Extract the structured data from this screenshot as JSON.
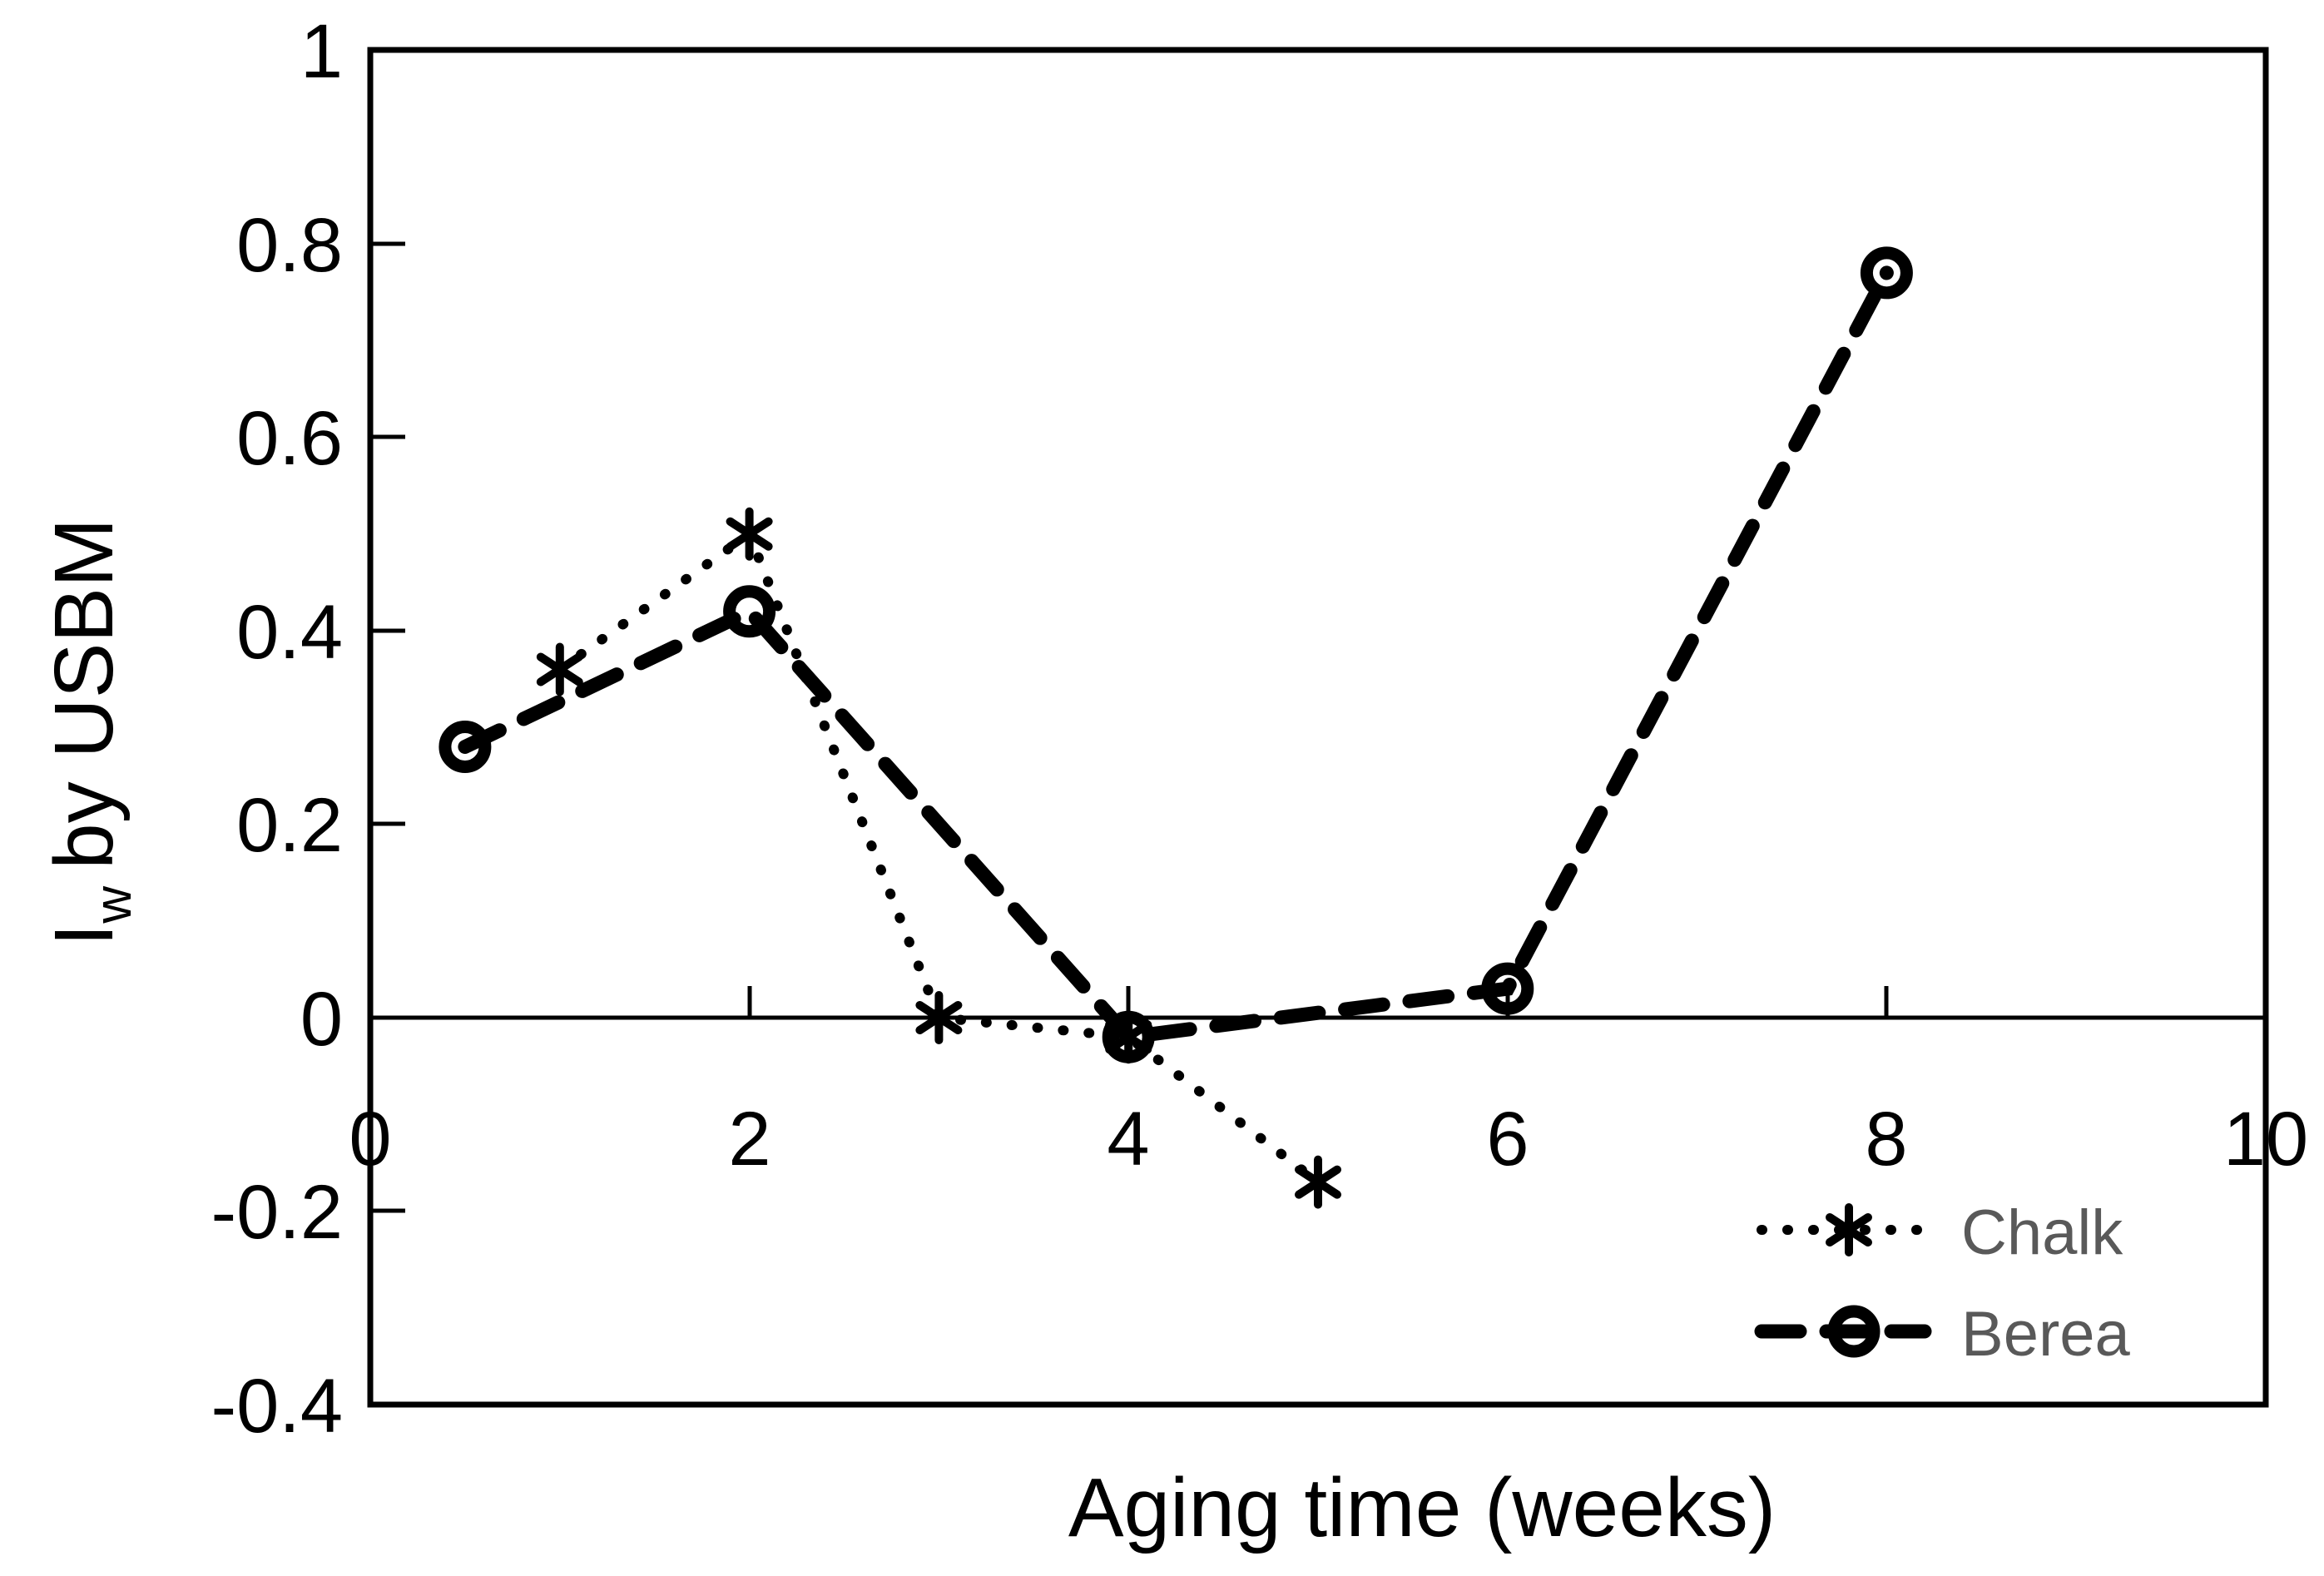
{
  "chart_data": {
    "type": "line",
    "title": "",
    "xlabel": "Aging time (weeks)",
    "ylabel": "Iw by USBM",
    "ylabel_parts": {
      "prefix": "I",
      "sub": "w",
      "suffix": "by USBM"
    },
    "xlim": [
      0,
      10
    ],
    "ylim": [
      -0.4,
      1
    ],
    "grid": "off",
    "xticks": [
      "0",
      "2",
      "4",
      "6",
      "8",
      "10"
    ],
    "xtick_values": [
      0,
      2,
      4,
      6,
      8,
      10
    ],
    "yticks": [
      "1",
      "0.8",
      "0.6",
      "0.4",
      "0.2",
      "0",
      "-0.2",
      "-0.4"
    ],
    "ytick_values": [
      1,
      0.8,
      0.6,
      0.4,
      0.2,
      0,
      -0.2,
      -0.4
    ],
    "series": [
      {
        "name": "Chalk",
        "line_style": "dotted",
        "marker": "asterisk",
        "x": [
          1,
          2,
          3,
          4,
          5
        ],
        "y": [
          0.36,
          0.5,
          0.0,
          -0.02,
          -0.17
        ]
      },
      {
        "name": "Berea",
        "line_style": "dashed",
        "marker": "open-circle",
        "x": [
          0.5,
          2,
          4,
          6,
          8
        ],
        "y": [
          0.28,
          0.42,
          -0.02,
          0.03,
          0.77
        ]
      }
    ],
    "legend": {
      "position": "bottom-right-below-axis",
      "entries": [
        {
          "label": "Chalk"
        },
        {
          "label": "Berea"
        }
      ]
    },
    "colors": {
      "series_stroke": "#000000",
      "axis": "#000000",
      "tick_text": "#000000",
      "legend_text": "#595959",
      "background": "#ffffff"
    }
  }
}
